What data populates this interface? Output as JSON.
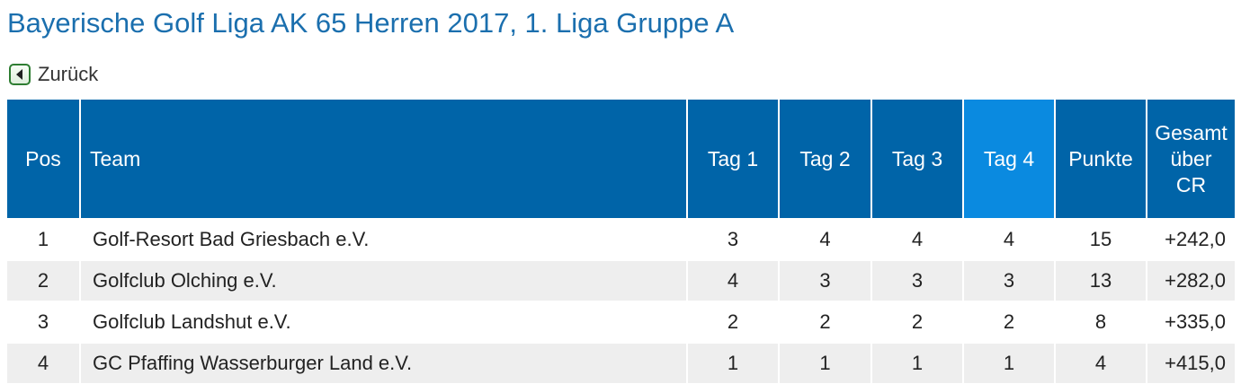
{
  "title": "Bayerische Golf Liga AK 65 Herren 2017, 1. Liga Gruppe A",
  "back": {
    "label": "Zurück",
    "icon": "chevron-left-icon"
  },
  "table": {
    "headers": {
      "pos": "Pos",
      "team": "Team",
      "tag1": "Tag 1",
      "tag2": "Tag 2",
      "tag3": "Tag 3",
      "tag4": "Tag 4",
      "punkte": "Punkte",
      "cr": [
        "Gesamt",
        "über",
        "CR"
      ]
    },
    "rows": [
      {
        "pos": "1",
        "team": "Golf-Resort Bad Griesbach e.V.",
        "tag1": "3",
        "tag2": "4",
        "tag3": "4",
        "tag4": "4",
        "punkte": "15",
        "cr": "+242,0"
      },
      {
        "pos": "2",
        "team": "Golfclub Olching e.V.",
        "tag1": "4",
        "tag2": "3",
        "tag3": "3",
        "tag4": "3",
        "punkte": "13",
        "cr": "+282,0"
      },
      {
        "pos": "3",
        "team": "Golfclub Landshut e.V.",
        "tag1": "2",
        "tag2": "2",
        "tag3": "2",
        "tag4": "2",
        "punkte": "8",
        "cr": "+335,0"
      },
      {
        "pos": "4",
        "team": "GC Pfaffing Wasserburger Land e.V.",
        "tag1": "1",
        "tag2": "1",
        "tag3": "1",
        "tag4": "1",
        "punkte": "4",
        "cr": "+415,0"
      }
    ]
  },
  "colors": {
    "title": "#1b6fae",
    "header": "#0064a8",
    "header_active": "#0a8ae0",
    "row_alt": "#eeeeee",
    "back_icon": "#2e7d32"
  }
}
